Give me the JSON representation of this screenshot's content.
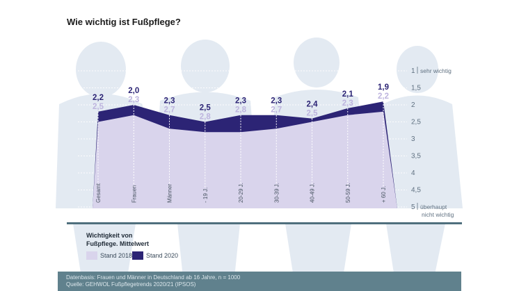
{
  "title": "Wie wichtig ist Fußpflege?",
  "chart_data": {
    "type": "area",
    "categories": [
      "Gesamt",
      "Frauen",
      "Männer",
      "- 19 J.",
      "20-29 J.",
      "30-39 J.",
      "40-49 J.",
      "50-59 J.",
      "+ 60 J."
    ],
    "series": [
      {
        "name": "Stand 2018",
        "values": [
          2.5,
          2.3,
          2.7,
          2.8,
          2.8,
          2.7,
          2.5,
          2.3,
          2.2
        ],
        "value_labels": [
          "2,5",
          "2,3",
          "2,7",
          "2,8",
          "2,8",
          "2,7",
          "2,5",
          "2,3",
          "2,2"
        ],
        "color": "#d9d4ec",
        "label_color": "#bdb4de"
      },
      {
        "name": "Stand 2020",
        "values": [
          2.2,
          2.0,
          2.3,
          2.5,
          2.3,
          2.3,
          2.4,
          2.1,
          1.9
        ],
        "value_labels": [
          "2,2",
          "2,0",
          "2,3",
          "2,5",
          "2,3",
          "2,3",
          "2,4",
          "2,1",
          "1,9"
        ],
        "color": "#2c2475",
        "label_color": "#2c2475"
      }
    ],
    "y_ticks": [
      "1",
      "1,5",
      "2",
      "2,5",
      "3",
      "3,5",
      "4",
      "4,5",
      "5"
    ],
    "y_tick_values": [
      1,
      1.5,
      2,
      2.5,
      3,
      3.5,
      4,
      4.5,
      5
    ],
    "y_annotations": {
      "top": "sehr wichtig",
      "bottom_line1": "überhaupt",
      "bottom_line2": "nicht wichtig"
    },
    "ylim": [
      1,
      5
    ],
    "y_inverted": true
  },
  "legend": {
    "title_line1": "Wichtigkeit von",
    "title_line2": "Fußpflege. Mittelwert",
    "label_2018": "Stand 2018",
    "label_2020": "Stand 2020"
  },
  "footer": {
    "line1": "Datenbasis: Frauen und Männer in Deutschland ab 16 Jahre, n = 1000",
    "line2": "Quelle: GEHWOL Fußpflegetrends 2020/21 (IPSOS)"
  },
  "colors": {
    "accent": "#2c2475",
    "light": "#d9d4ec",
    "silhouette": "#e3eaf2",
    "axis": "#4f6f7d",
    "footer": "#60818d"
  }
}
